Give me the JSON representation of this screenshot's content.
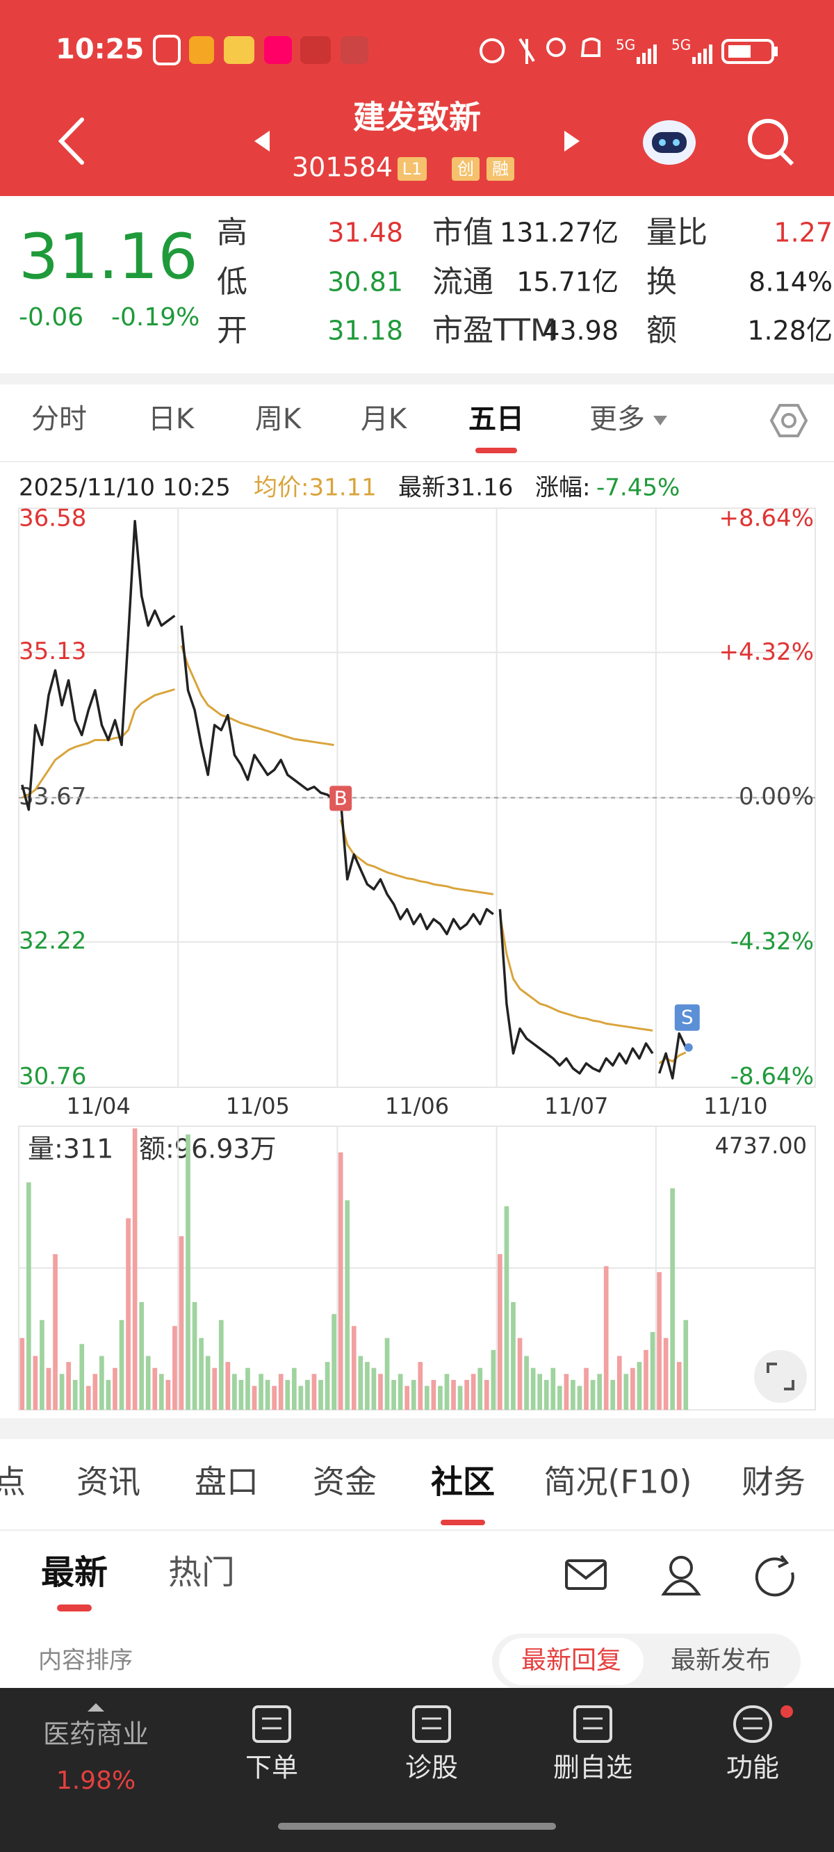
{
  "status_bar": {
    "time": "10:25",
    "net1": "5G",
    "net2": "5G"
  },
  "header": {
    "title": "建发致新",
    "code": "301584",
    "badges": [
      "L1",
      "创",
      "融"
    ]
  },
  "quote": {
    "price": "31.16",
    "change": "-0.06",
    "change_pct": "-0.19%",
    "rows": [
      [
        {
          "label": "高",
          "value": "31.48",
          "color": "#e03434"
        },
        {
          "label": "市值",
          "value": "131.27亿",
          "color": "#222222"
        },
        {
          "label": "量比",
          "value": "1.27",
          "color": "#e03434"
        }
      ],
      [
        {
          "label": "低",
          "value": "30.81",
          "color": "#1f9a3a"
        },
        {
          "label": "流通",
          "value": "15.71亿",
          "color": "#222222"
        },
        {
          "label": "换",
          "value": "8.14%",
          "color": "#222222"
        }
      ],
      [
        {
          "label": "开",
          "value": "31.18",
          "color": "#1f9a3a"
        },
        {
          "label": "市盈TTM",
          "value": "43.98",
          "color": "#222222"
        },
        {
          "label": "额",
          "value": "1.28亿",
          "color": "#222222"
        }
      ]
    ]
  },
  "chart_tabs": {
    "items": [
      "分时",
      "日K",
      "周K",
      "月K",
      "五日",
      "更多"
    ],
    "selected": 4
  },
  "chart_data": {
    "type": "line",
    "info": {
      "time": "2025/11/10 10:25",
      "avg": "均价:31.11",
      "latest": "最新31.16",
      "change_label": "涨幅:",
      "change": "-7.45%"
    },
    "categories": [
      "11/04",
      "11/05",
      "11/06",
      "11/07",
      "11/10"
    ],
    "ylim": [
      30.76,
      36.58
    ],
    "yticks": [
      36.58,
      35.13,
      33.67,
      32.22,
      30.76
    ],
    "y2lim": [
      -8.64,
      8.64
    ],
    "y2ticks": [
      {
        "value": 8.64,
        "label": "+8.64%"
      },
      {
        "value": 4.32,
        "label": "+4.32%"
      },
      {
        "value": 0,
        "label": "0.00%"
      },
      {
        "value": -4.32,
        "label": "-4.32%"
      },
      {
        "value": -8.64,
        "label": "-8.64%"
      }
    ],
    "colors": {
      "price": "#222222",
      "avg": "#d9a43b",
      "up": "#e03434",
      "down": "#1f9a3a",
      "volume_up": "#f2a0a0",
      "volume_down": "#9fd39f",
      "buy": "#e05a5a",
      "sell": "#5b8fd6"
    },
    "days": [
      {
        "price": [
          33.8,
          33.55,
          34.4,
          34.2,
          34.7,
          34.95,
          34.6,
          34.85,
          34.45,
          34.3,
          34.55,
          34.75,
          34.4,
          34.25,
          34.45,
          34.2,
          35.3,
          36.45,
          35.7,
          35.4,
          35.55,
          35.4,
          35.45,
          35.5
        ],
        "avg": [
          33.67,
          33.7,
          33.75,
          33.85,
          33.95,
          34.05,
          34.1,
          34.15,
          34.18,
          34.2,
          34.22,
          34.25,
          34.25,
          34.25,
          34.27,
          34.28,
          34.35,
          34.55,
          34.62,
          34.66,
          34.7,
          34.72,
          34.74,
          34.76
        ],
        "volume": [
          1200,
          3800,
          900,
          1500,
          700,
          2600,
          600,
          800,
          500,
          1100,
          400,
          600,
          900,
          500,
          700,
          1500,
          3200,
          4700,
          1800,
          900,
          700,
          600,
          500,
          1400
        ]
      },
      {
        "price": [
          35.4,
          34.75,
          34.55,
          34.2,
          33.9,
          34.4,
          34.35,
          34.5,
          34.1,
          34.0,
          33.85,
          34.1,
          34.0,
          33.9,
          33.95,
          34.05,
          33.9,
          33.85,
          33.8,
          33.75,
          33.78,
          33.72,
          33.7,
          33.65
        ],
        "avg": [
          35.2,
          35.0,
          34.85,
          34.7,
          34.6,
          34.55,
          34.5,
          34.48,
          34.45,
          34.42,
          34.4,
          34.38,
          34.36,
          34.34,
          34.32,
          34.3,
          34.28,
          34.26,
          34.25,
          34.24,
          34.23,
          34.22,
          34.21,
          34.2
        ],
        "volume": [
          2900,
          4600,
          1800,
          1200,
          900,
          700,
          1500,
          800,
          600,
          500,
          700,
          400,
          600,
          500,
          400,
          600,
          500,
          700,
          400,
          500,
          600,
          500,
          800,
          1600
        ]
      },
      {
        "price": [
          33.65,
          32.85,
          33.1,
          32.95,
          32.8,
          32.75,
          32.85,
          32.7,
          32.6,
          32.45,
          32.55,
          32.4,
          32.5,
          32.35,
          32.45,
          32.4,
          32.3,
          32.45,
          32.35,
          32.4,
          32.5,
          32.4,
          32.55,
          32.5
        ],
        "avg": [
          33.45,
          33.2,
          33.1,
          33.05,
          33.0,
          32.98,
          32.95,
          32.92,
          32.9,
          32.88,
          32.86,
          32.85,
          32.83,
          32.82,
          32.8,
          32.79,
          32.78,
          32.76,
          32.75,
          32.74,
          32.73,
          32.72,
          32.71,
          32.7
        ],
        "volume": [
          4300,
          3500,
          1400,
          900,
          800,
          700,
          600,
          1200,
          500,
          600,
          400,
          500,
          800,
          400,
          500,
          400,
          600,
          500,
          400,
          500,
          600,
          700,
          500,
          1000
        ]
      },
      {
        "price": [
          32.55,
          31.6,
          31.1,
          31.35,
          31.25,
          31.2,
          31.15,
          31.1,
          31.05,
          30.98,
          31.05,
          30.95,
          30.9,
          31.0,
          30.95,
          30.92,
          31.05,
          30.98,
          31.1,
          31.0,
          31.15,
          31.05,
          31.2,
          31.1
        ],
        "avg": [
          32.5,
          32.1,
          31.85,
          31.75,
          31.7,
          31.65,
          31.6,
          31.58,
          31.55,
          31.52,
          31.5,
          31.48,
          31.46,
          31.45,
          31.43,
          31.42,
          31.4,
          31.39,
          31.38,
          31.37,
          31.36,
          31.35,
          31.34,
          31.33
        ],
        "volume": [
          2600,
          3400,
          1800,
          1200,
          900,
          700,
          600,
          500,
          700,
          400,
          600,
          500,
          400,
          700,
          500,
          600,
          2400,
          500,
          900,
          600,
          700,
          800,
          1000,
          1300
        ]
      },
      {
        "price": [
          30.9,
          31.1,
          30.85,
          31.3,
          31.16
        ],
        "avg": [
          31.0,
          31.05,
          31.02,
          31.08,
          31.11
        ],
        "volume": [
          2300,
          1200,
          3700,
          800,
          1500
        ]
      }
    ],
    "buy_label": "B",
    "sell_label": "S",
    "volume_label": "量:311",
    "amount_label": "额:96.93万",
    "volume_ylim": [
      0,
      4737
    ],
    "volume_yticks": [
      {
        "value": 4737,
        "label": "4737.00"
      }
    ]
  },
  "info_tabs": {
    "items": [
      "点",
      "资讯",
      "盘口",
      "资金",
      "社区",
      "简况(F10)",
      "财务"
    ],
    "selected": 4
  },
  "feed_tabs": {
    "items": [
      "最新",
      "热门"
    ],
    "selected": 0
  },
  "sort": {
    "label": "内容排序",
    "options": [
      "最新回复",
      "最新发布"
    ],
    "selected": 0
  },
  "bottom_bar": {
    "sector": "医药商业",
    "sector_change": "1.98%",
    "items": [
      "下单",
      "诊股",
      "删自选",
      "功能"
    ]
  }
}
